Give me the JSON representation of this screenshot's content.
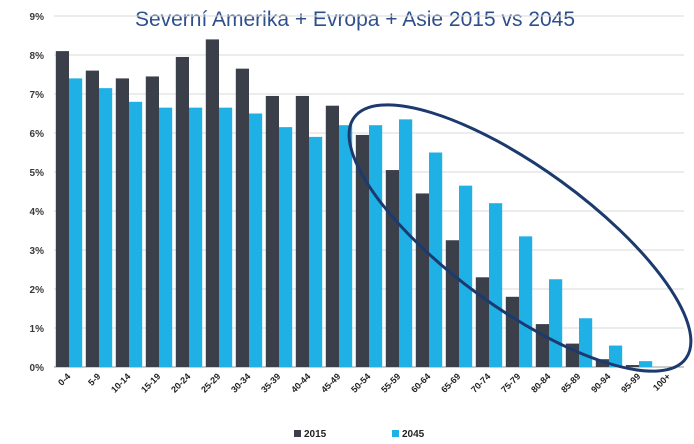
{
  "chart_data": {
    "type": "bar",
    "title": "Severní Amerika + Evropa + Asie 2015 vs 2045",
    "xlabel": "",
    "ylabel": "",
    "ylim": [
      0,
      9
    ],
    "y_ticks": [
      "0%",
      "1%",
      "2%",
      "3%",
      "4%",
      "5%",
      "6%",
      "7%",
      "8%",
      "9%"
    ],
    "grid": true,
    "legend_position": "bottom",
    "categories": [
      "0-4",
      "5-9",
      "10-14",
      "15-19",
      "20-24",
      "25-29",
      "30-34",
      "35-39",
      "40-44",
      "45-49",
      "50-54",
      "55-59",
      "60-64",
      "65-69",
      "70-74",
      "75-79",
      "80-84",
      "85-89",
      "90-94",
      "95-99",
      "100+"
    ],
    "series": [
      {
        "name": "2015",
        "color": "#3a3f4a",
        "values": [
          8.1,
          7.6,
          7.4,
          7.45,
          7.95,
          8.4,
          7.65,
          6.95,
          6.95,
          6.7,
          5.95,
          5.05,
          4.45,
          3.25,
          2.3,
          1.8,
          1.1,
          0.6,
          0.2,
          0.05,
          0.0
        ]
      },
      {
        "name": "2045",
        "color": "#1fb0e6",
        "values": [
          7.4,
          7.15,
          6.8,
          6.65,
          6.65,
          6.65,
          6.5,
          6.15,
          5.9,
          6.2,
          6.2,
          6.35,
          5.5,
          4.65,
          4.2,
          3.35,
          2.25,
          1.25,
          0.55,
          0.15,
          0.0
        ]
      }
    ],
    "annotation": "ellipse highlighting older age groups",
    "colors": {
      "title": "#2e4f8c",
      "ellipse": "#1c3a6e",
      "grid": "#d9d9d9"
    }
  }
}
